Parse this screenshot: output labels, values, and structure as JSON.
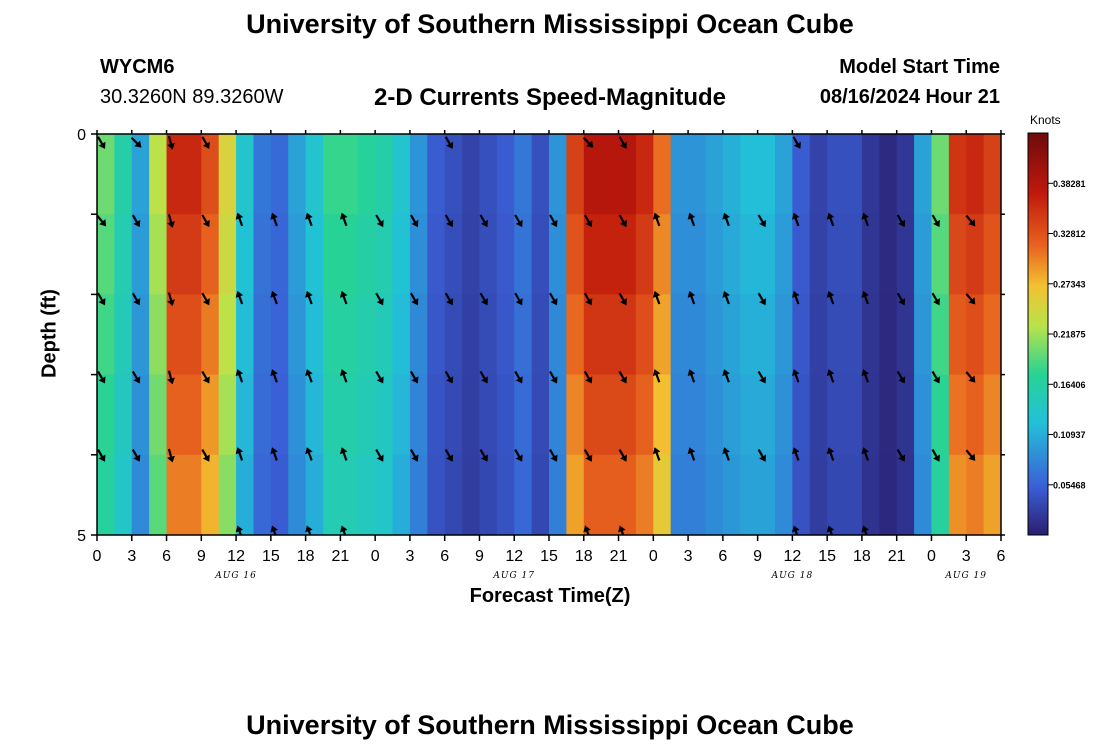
{
  "header": {
    "title": "University of Southern Mississippi Ocean Cube",
    "station": "WYCM6",
    "coords": "30.3260N  89.3260W",
    "subtitle": "2-D Currents Speed-Magnitude",
    "model_start_label": "Model Start Time",
    "model_start_value": "08/16/2024 Hour 21"
  },
  "footer": {
    "title": "University of Southern Mississippi Ocean Cube"
  },
  "chart_data": {
    "type": "heatmap",
    "title": "2-D Currents Speed-Magnitude",
    "xlabel": "Forecast Time(Z)",
    "ylabel": "Depth (ft)",
    "ylim": [
      0,
      5
    ],
    "y_tick_labels": [
      "0",
      "5"
    ],
    "x_tick_labels": [
      "0",
      "3",
      "6",
      "9",
      "12",
      "15",
      "18",
      "21",
      "0",
      "3",
      "6",
      "9",
      "12",
      "15",
      "18",
      "21",
      "0",
      "3",
      "6",
      "9",
      "12",
      "15",
      "18",
      "21",
      "0",
      "3",
      "6"
    ],
    "day_labels": [
      "AUG 16",
      "AUG 17",
      "AUG 18",
      "AUG 19"
    ],
    "colorbar": {
      "units": "Knots",
      "ticks": [
        "0.38281",
        "0.32812",
        "0.27343",
        "0.21875",
        "0.16406",
        "0.10937",
        "0.05468"
      ],
      "tick_values": [
        0.38281,
        0.32812,
        0.27343,
        0.21875,
        0.16406,
        0.10937,
        0.05468
      ],
      "min": 0,
      "max": 0.4375
    },
    "speed_profile_knots": [
      0.2,
      0.16,
      0.1,
      0.23,
      0.36,
      0.36,
      0.33,
      0.25,
      0.13,
      0.07,
      0.06,
      0.1,
      0.13,
      0.18,
      0.18,
      0.17,
      0.16,
      0.13,
      0.09,
      0.05,
      0.04,
      0.03,
      0.04,
      0.05,
      0.07,
      0.04,
      0.09,
      0.34,
      0.38,
      0.38,
      0.38,
      0.36,
      0.31,
      0.09,
      0.09,
      0.1,
      0.11,
      0.12,
      0.12,
      0.1,
      0.05,
      0.03,
      0.04,
      0.04,
      0.02,
      0.01,
      0.02,
      0.1,
      0.2,
      0.35,
      0.36,
      0.34
    ],
    "arrow_rows": [
      [
        150,
        135,
        165,
        150,
        0,
        0,
        0,
        0,
        0,
        0,
        150,
        0,
        0,
        0,
        135,
        150,
        0,
        0,
        0,
        0,
        150,
        0,
        0,
        0,
        0,
        0,
        0
      ],
      [
        140,
        150,
        165,
        150,
        340,
        340,
        340,
        340,
        150,
        150,
        150,
        150,
        150,
        150,
        150,
        150,
        340,
        340,
        340,
        150,
        340,
        340,
        340,
        150,
        150,
        140,
        0
      ],
      [
        150,
        150,
        165,
        150,
        340,
        340,
        340,
        340,
        150,
        150,
        150,
        150,
        150,
        150,
        150,
        150,
        340,
        340,
        340,
        150,
        340,
        340,
        340,
        150,
        150,
        140,
        0
      ],
      [
        150,
        150,
        165,
        150,
        340,
        340,
        340,
        340,
        150,
        150,
        150,
        150,
        150,
        150,
        150,
        150,
        340,
        340,
        340,
        150,
        340,
        340,
        340,
        150,
        150,
        140,
        0
      ],
      [
        150,
        150,
        165,
        150,
        340,
        340,
        340,
        340,
        150,
        150,
        150,
        150,
        150,
        150,
        150,
        150,
        340,
        340,
        340,
        150,
        340,
        340,
        340,
        150,
        150,
        140,
        0
      ],
      [
        0,
        0,
        0,
        0,
        340,
        340,
        340,
        340,
        0,
        0,
        0,
        0,
        0,
        0,
        340,
        340,
        0,
        0,
        0,
        0,
        340,
        340,
        340,
        0,
        0,
        0,
        0
      ]
    ]
  }
}
